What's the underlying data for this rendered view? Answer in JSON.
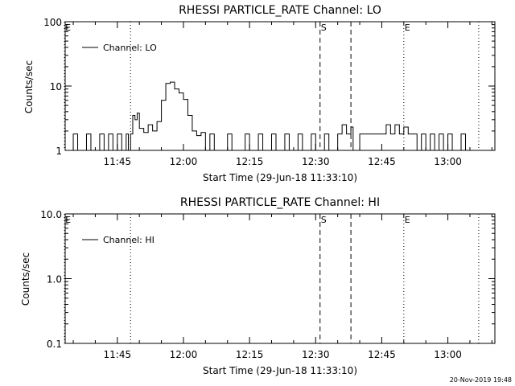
{
  "chart_data": [
    {
      "type": "line",
      "title": "RHESSI PARTICLE_RATE Channel: LO",
      "xlabel": "Start Time (29-Jun-18 11:33:10)",
      "ylabel": "Counts/sec",
      "y_scale": "log",
      "ylim": [
        1,
        100
      ],
      "xlim_minutes_since_start": [
        0,
        97.5
      ],
      "x_ticks": [
        "11:45",
        "12:00",
        "12:15",
        "12:30",
        "12:45",
        "13:00"
      ],
      "y_ticks": [
        "1",
        "10",
        "100"
      ],
      "legend": {
        "entries": [
          "Channel: LO"
        ],
        "placement": "top-left"
      },
      "markers": [
        {
          "label": "E",
          "time": "11:33",
          "style": "dotted"
        },
        {
          "label": "",
          "time": "11:48",
          "style": "dotted"
        },
        {
          "label": "S",
          "time": "12:31",
          "style": "dashed"
        },
        {
          "label": "",
          "time": "12:38",
          "style": "dashed"
        },
        {
          "label": "E",
          "time": "12:50",
          "style": "dotted"
        },
        {
          "label": "",
          "time": "13:07",
          "style": "dotted"
        }
      ],
      "series": [
        {
          "name": "Channel: LO",
          "points": [
            [
              "11:34",
              1
            ],
            [
              "11:35",
              1.8
            ],
            [
              "11:36",
              1
            ],
            [
              "11:38",
              1.8
            ],
            [
              "11:39",
              1
            ],
            [
              "11:40",
              1
            ],
            [
              "11:41",
              1.8
            ],
            [
              "11:42",
              1
            ],
            [
              "11:43",
              1.8
            ],
            [
              "11:44",
              1
            ],
            [
              "11:45",
              1.8
            ],
            [
              "11:46",
              1
            ],
            [
              "11:47",
              1.8
            ],
            [
              "11:47:30",
              1
            ],
            [
              "11:48",
              1.8
            ],
            [
              "11:48:30",
              3.5
            ],
            [
              "11:49",
              3
            ],
            [
              "11:49:30",
              3.8
            ],
            [
              "11:50",
              2.2
            ],
            [
              "11:51",
              1.9
            ],
            [
              "11:52",
              2.5
            ],
            [
              "11:53",
              2.0
            ],
            [
              "11:54",
              2.8
            ],
            [
              "11:55",
              6
            ],
            [
              "11:56",
              11
            ],
            [
              "11:57",
              11.5
            ],
            [
              "11:58",
              9
            ],
            [
              "11:59",
              7.8
            ],
            [
              "12:00",
              6.2
            ],
            [
              "12:01",
              3.5
            ],
            [
              "12:02",
              2.0
            ],
            [
              "12:03",
              1.7
            ],
            [
              "12:04",
              1.9
            ],
            [
              "12:05",
              1
            ],
            [
              "12:06",
              1.8
            ],
            [
              "12:07",
              1
            ],
            [
              "12:10",
              1.8
            ],
            [
              "12:11",
              1
            ],
            [
              "12:14",
              1.8
            ],
            [
              "12:15",
              1
            ],
            [
              "12:17",
              1.8
            ],
            [
              "12:18",
              1
            ],
            [
              "12:20",
              1.8
            ],
            [
              "12:21",
              1
            ],
            [
              "12:23",
              1.8
            ],
            [
              "12:24",
              1
            ],
            [
              "12:26",
              1.8
            ],
            [
              "12:27",
              1
            ],
            [
              "12:29",
              1.8
            ],
            [
              "12:30",
              1
            ],
            [
              "12:32",
              1.8
            ],
            [
              "12:33",
              1
            ],
            [
              "12:35",
              1.8
            ],
            [
              "12:36",
              2.5
            ],
            [
              "12:37",
              1.8
            ],
            [
              "12:38",
              2.3
            ],
            [
              "12:38:30",
              1
            ],
            [
              "12:40",
              1.8
            ],
            [
              "12:45",
              1.8
            ],
            [
              "12:46",
              2.5
            ],
            [
              "12:47",
              1.8
            ],
            [
              "12:48",
              2.5
            ],
            [
              "12:49",
              1.8
            ],
            [
              "12:50",
              2.3
            ],
            [
              "12:51",
              1.8
            ],
            [
              "12:53",
              1
            ],
            [
              "12:54",
              1.8
            ],
            [
              "12:55",
              1
            ],
            [
              "12:56",
              1.8
            ],
            [
              "12:57",
              1
            ],
            [
              "12:58",
              1.8
            ],
            [
              "12:59",
              1
            ],
            [
              "13:00",
              1.8
            ],
            [
              "13:01",
              1
            ],
            [
              "13:03",
              1.8
            ],
            [
              "13:04",
              1
            ]
          ]
        }
      ]
    },
    {
      "type": "line",
      "title": "RHESSI PARTICLE_RATE Channel: HI",
      "xlabel": "Start Time (29-Jun-18 11:33:10)",
      "ylabel": "Counts/sec",
      "y_scale": "log",
      "ylim": [
        0.1,
        10
      ],
      "xlim_minutes_since_start": [
        0,
        97.5
      ],
      "x_ticks": [
        "11:45",
        "12:00",
        "12:15",
        "12:30",
        "12:45",
        "13:00"
      ],
      "y_ticks": [
        "0.1",
        "1.0",
        "10.0"
      ],
      "legend": {
        "entries": [
          "Channel: HI"
        ],
        "placement": "top-left"
      },
      "markers": [
        {
          "label": "E",
          "time": "11:33",
          "style": "dotted"
        },
        {
          "label": "",
          "time": "11:48",
          "style": "dotted"
        },
        {
          "label": "S",
          "time": "12:31",
          "style": "dashed"
        },
        {
          "label": "",
          "time": "12:38",
          "style": "dashed"
        },
        {
          "label": "E",
          "time": "12:50",
          "style": "dotted"
        },
        {
          "label": "",
          "time": "13:07",
          "style": "dotted"
        }
      ],
      "series": [
        {
          "name": "Channel: HI",
          "points": []
        }
      ]
    }
  ],
  "footer": {
    "timestamp": "20-Nov-2019 19:48"
  }
}
